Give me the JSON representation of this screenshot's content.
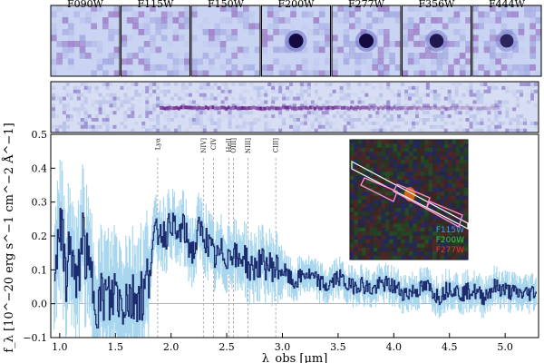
{
  "stamps": [
    {
      "label": "F090W",
      "source_strength": 0.0
    },
    {
      "label": "F115W",
      "source_strength": 0.0
    },
    {
      "label": "F150W",
      "source_strength": 0.05
    },
    {
      "label": "F200W",
      "source_strength": 1.0
    },
    {
      "label": "F277W",
      "source_strength": 1.0
    },
    {
      "label": "F356W",
      "source_strength": 0.85
    },
    {
      "label": "F444W",
      "source_strength": 0.7
    }
  ],
  "inset": {
    "legend": [
      {
        "label": "F115W",
        "color": "#5a8fe0"
      },
      {
        "label": "F200W",
        "color": "#3fbf3f"
      },
      {
        "label": "F277W",
        "color": "#e03a2a"
      }
    ],
    "slit_color": "#ff8fd8"
  },
  "colors": {
    "flux": "#1c2a6e",
    "error": "#a8d6ee",
    "stamp_bg": "#c9d3f2",
    "stamp_noise": "#6b6fc9",
    "stamp_source": "#140a40",
    "twod_bg": "#d7ddf3",
    "twod_trace": "#6a1f8a"
  },
  "chart_data": {
    "type": "line",
    "xlabel": "λ_obs [μm]",
    "ylabel": "f_λ [10^−20 erg s^−1 cm^−2 Å^−1]",
    "xlim": [
      0.92,
      5.3
    ],
    "ylim": [
      -0.1,
      0.5
    ],
    "xticks": [
      "1.0",
      "1.5",
      "2.0",
      "2.5",
      "3.0",
      "3.5",
      "4.0",
      "4.5",
      "5.0"
    ],
    "yticks": [
      "−0.1",
      "0.0",
      "0.1",
      "0.2",
      "0.3",
      "0.4",
      "0.5"
    ],
    "emission_lines": [
      {
        "label": "Lyα",
        "x": 1.88
      },
      {
        "label": "NIV]",
        "x": 2.29
      },
      {
        "label": "CIV",
        "x": 2.38
      },
      {
        "label": "HeII",
        "x": 2.52
      },
      {
        "label": "OIII]",
        "x": 2.56
      },
      {
        "label": "NIII]",
        "x": 2.69
      },
      {
        "label": "CIII]",
        "x": 2.94
      }
    ],
    "series": [
      {
        "x": [
          0.95,
          1.0,
          1.05,
          1.1,
          1.15,
          1.2,
          1.25,
          1.3,
          1.35,
          1.4,
          1.45,
          1.5,
          1.55,
          1.6,
          1.65,
          1.7,
          1.75,
          1.8,
          1.85,
          1.9,
          1.95,
          2.0,
          2.05,
          2.1,
          2.15,
          2.2,
          2.25,
          2.3,
          2.35,
          2.4,
          2.45,
          2.5,
          2.55,
          2.6,
          2.65,
          2.7,
          2.8,
          2.9,
          3.0,
          3.1,
          3.2,
          3.3,
          3.4,
          3.5,
          3.6,
          3.7,
          3.8,
          3.9,
          4.0,
          4.1,
          4.2,
          4.3,
          4.4,
          4.5,
          4.6,
          4.7,
          4.8,
          4.9,
          5.0,
          5.1,
          5.2,
          5.28
        ],
        "y": [
          0.12,
          0.25,
          0.08,
          0.18,
          0.02,
          0.22,
          0.1,
          0.05,
          0.0,
          0.03,
          0.0,
          0.05,
          0.0,
          0.03,
          0.01,
          0.04,
          0.02,
          0.1,
          0.2,
          0.22,
          0.2,
          0.25,
          0.19,
          0.23,
          0.18,
          0.15,
          0.22,
          0.2,
          0.16,
          0.13,
          0.15,
          0.14,
          0.16,
          0.12,
          0.15,
          0.1,
          0.12,
          0.11,
          0.1,
          0.06,
          0.09,
          0.07,
          0.05,
          0.08,
          0.05,
          0.06,
          0.04,
          0.06,
          0.05,
          0.03,
          0.04,
          0.05,
          0.02,
          0.05,
          0.03,
          0.04,
          0.02,
          0.05,
          0.04,
          0.03,
          0.03,
          0.04
        ]
      }
    ]
  }
}
